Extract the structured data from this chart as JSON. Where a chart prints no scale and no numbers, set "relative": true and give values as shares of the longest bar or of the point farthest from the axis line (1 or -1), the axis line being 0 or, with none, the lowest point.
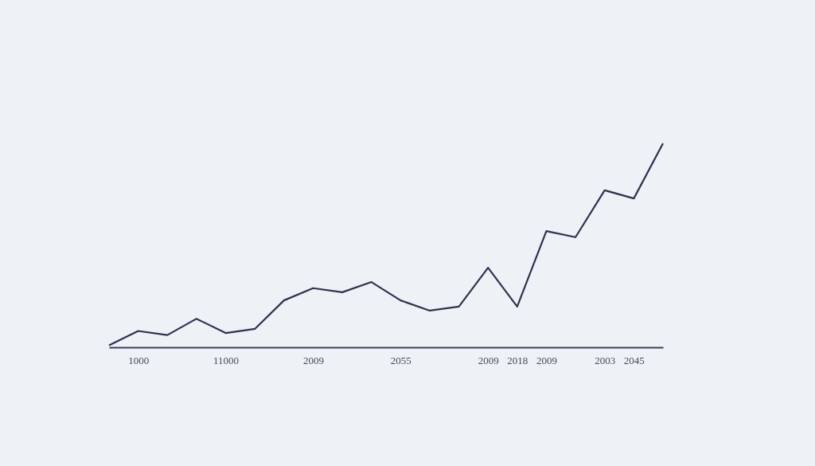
{
  "chart_data": {
    "type": "line",
    "relative": true,
    "grid": false,
    "marker": "none",
    "line_style": "solid",
    "categories": [
      null,
      "1000",
      null,
      null,
      "11000",
      null,
      null,
      "2009",
      null,
      null,
      "2055",
      null,
      null,
      "2009",
      "2018",
      "2009",
      null,
      "2003",
      "2045",
      null
    ],
    "series": [
      {
        "color": "#2b3350",
        "values": [
          0.01,
          0.08,
          0.06,
          0.14,
          0.07,
          0.09,
          0.23,
          0.29,
          0.27,
          0.32,
          0.23,
          0.18,
          0.2,
          0.39,
          0.2,
          0.57,
          0.54,
          0.77,
          0.73,
          1
        ]
      }
    ]
  }
}
